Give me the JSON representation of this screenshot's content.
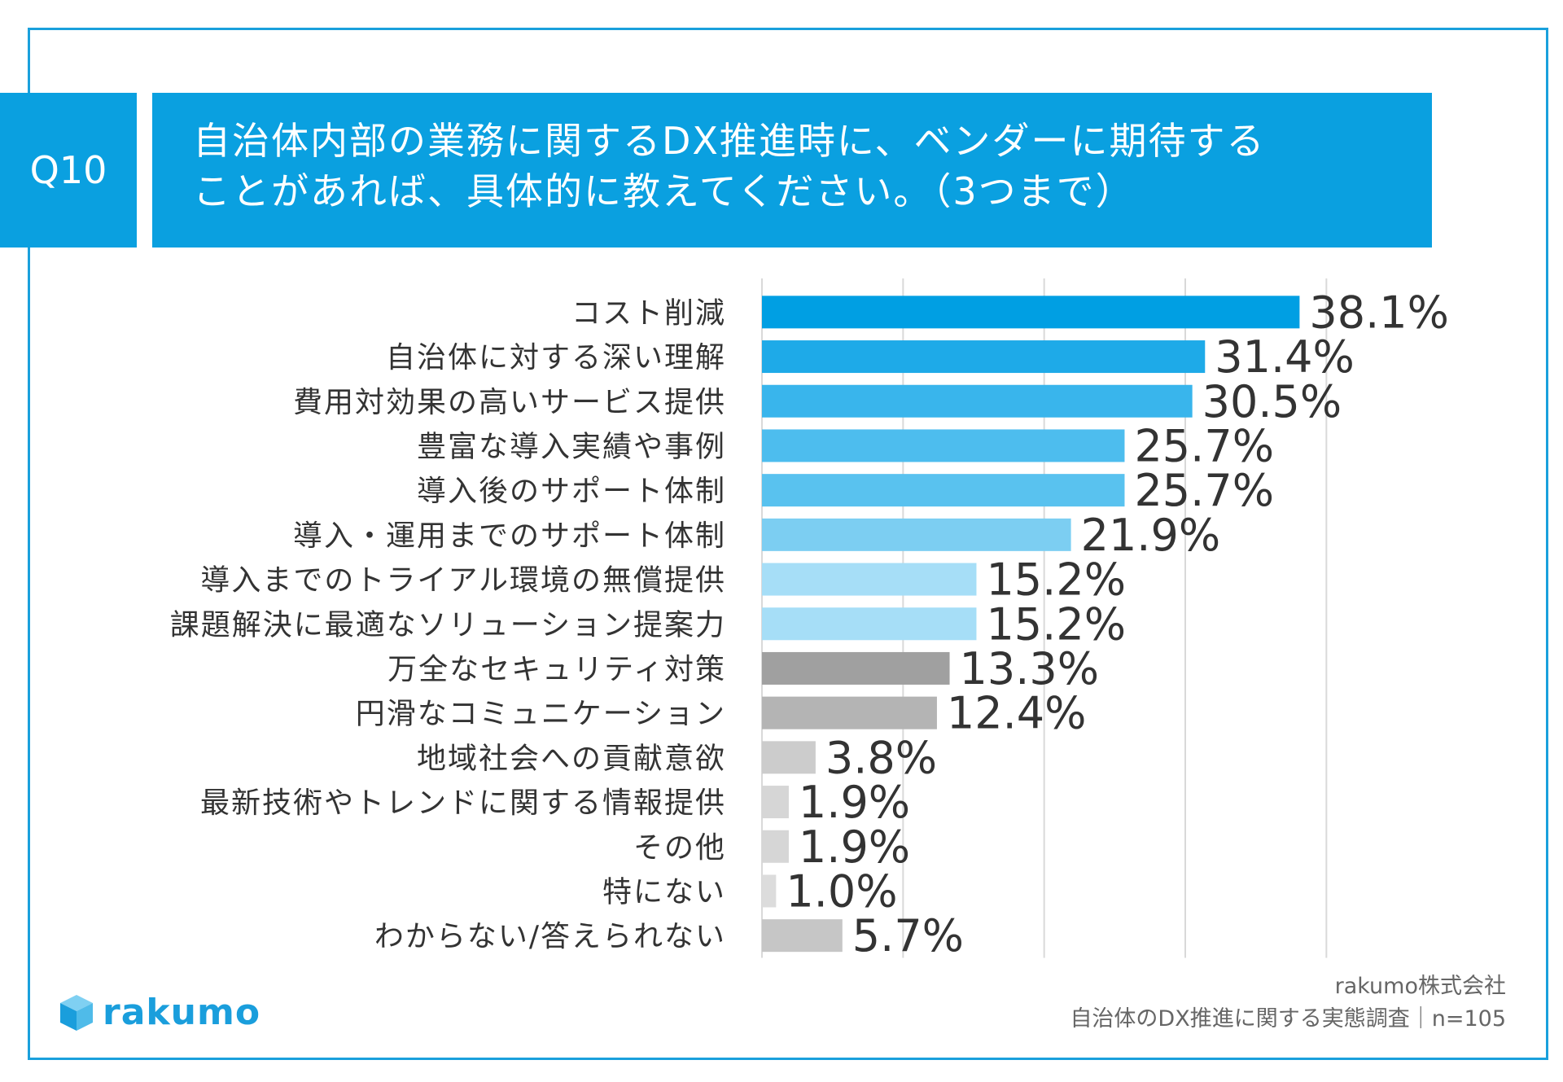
{
  "question": {
    "number": "Q10",
    "title_lines": [
      "自治体内部の業務に関するDX推進時に、ベンダーに期待する",
      "ことがあれば、具体的に教えてください。（3つまで）"
    ]
  },
  "chart_data": {
    "type": "bar",
    "orientation": "horizontal",
    "xlim": [
      0,
      45
    ],
    "categories": [
      "コスト削減",
      "自治体に対する深い理解",
      "費用対効果の高いサービス提供",
      "豊富な導入実績や事例",
      "導入後のサポート体制",
      "導入・運用までのサポート体制",
      "導入までのトライアル環境の無償提供",
      "課題解決に最適なソリューション提案力",
      "万全なセキュリティ対策",
      "円滑なコミュニケーション",
      "地域社会への貢献意欲",
      "最新技術やトレンドに関する情報提供",
      "その他",
      "特にない",
      "わからない/答えられない"
    ],
    "values": [
      38.1,
      31.4,
      30.5,
      25.7,
      25.7,
      21.9,
      15.2,
      15.2,
      13.3,
      12.4,
      3.8,
      1.9,
      1.9,
      1.0,
      5.7
    ],
    "value_labels": [
      "38.1%",
      "31.4%",
      "30.5%",
      "25.7%",
      "25.7%",
      "21.9%",
      "15.2%",
      "15.2%",
      "13.3%",
      "12.4%",
      "3.8%",
      "1.9%",
      "1.9%",
      "1.0%",
      "5.7%"
    ],
    "colors": [
      "#009fe3",
      "#1eaae8",
      "#39b5ec",
      "#4dbdee",
      "#59c2ef",
      "#7ccef2",
      "#a6def7",
      "#a6def7",
      "#a0a0a0",
      "#b4b4b4",
      "#cccccc",
      "#d6d6d6",
      "#d6d6d6",
      "#dcdcdc",
      "#c6c6c6"
    ],
    "gridlines": true
  },
  "footer": {
    "company": "rakumo株式会社",
    "survey": "自治体のDX推進に関する実態調査｜n=105"
  },
  "logo": {
    "text": "rakumo",
    "color": "#1a9edc"
  }
}
